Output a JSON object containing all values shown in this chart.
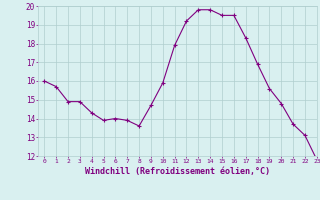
{
  "x": [
    0,
    1,
    2,
    3,
    4,
    5,
    6,
    7,
    8,
    9,
    10,
    11,
    12,
    13,
    14,
    15,
    16,
    17,
    18,
    19,
    20,
    21,
    22,
    23
  ],
  "y": [
    16.0,
    15.7,
    14.9,
    14.9,
    14.3,
    13.9,
    14.0,
    13.9,
    13.6,
    14.7,
    15.9,
    17.9,
    19.2,
    19.8,
    19.8,
    19.5,
    19.5,
    18.3,
    16.9,
    15.6,
    14.8,
    13.7,
    13.1,
    11.8
  ],
  "line_color": "#800080",
  "marker": "+",
  "marker_size": 3,
  "bg_color": "#d9f0f0",
  "grid_color": "#b0cece",
  "xlabel": "Windchill (Refroidissement éolien,°C)",
  "xlabel_color": "#800080",
  "tick_color": "#800080",
  "ylim": [
    12,
    20
  ],
  "xlim": [
    -0.5,
    23
  ],
  "yticks": [
    12,
    13,
    14,
    15,
    16,
    17,
    18,
    19,
    20
  ],
  "xticks": [
    0,
    1,
    2,
    3,
    4,
    5,
    6,
    7,
    8,
    9,
    10,
    11,
    12,
    13,
    14,
    15,
    16,
    17,
    18,
    19,
    20,
    21,
    22,
    23
  ]
}
